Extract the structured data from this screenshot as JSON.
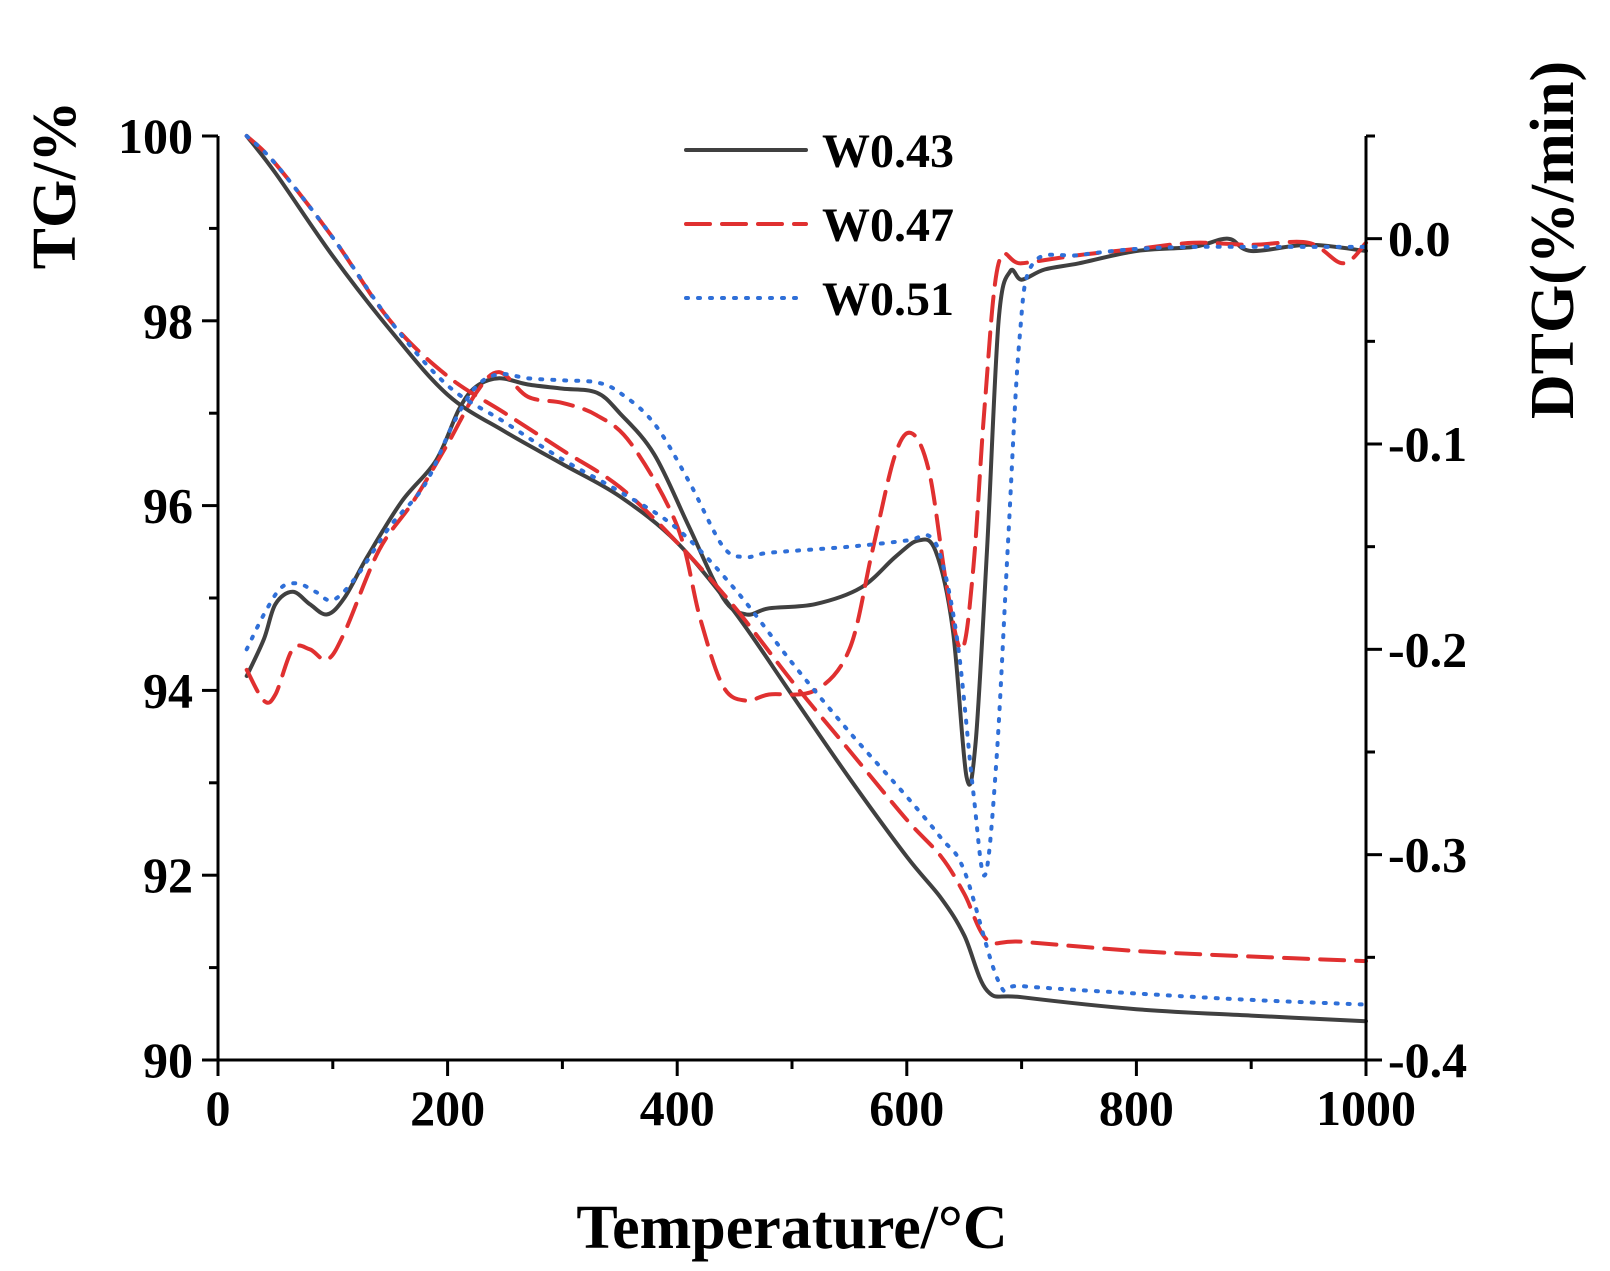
{
  "chart_data": {
    "type": "line",
    "title": "",
    "xlabel": "Temperature/°C",
    "ylabel": "TG/%",
    "y2label": "DTG(%/min)",
    "xlim": [
      0,
      1000
    ],
    "ylim": [
      90,
      100
    ],
    "y2lim": [
      -0.4,
      0.05
    ],
    "x_ticks": [
      0,
      200,
      400,
      600,
      800,
      1000
    ],
    "y_ticks": [
      90,
      92,
      94,
      96,
      98,
      100
    ],
    "y2_ticks": [
      -0.4,
      -0.3,
      -0.2,
      -0.1,
      0.0
    ],
    "x_tick_labels": [
      "0",
      "200",
      "400",
      "600",
      "800",
      "1000"
    ],
    "y_tick_labels": [
      "90",
      "92",
      "94",
      "96",
      "98",
      "100"
    ],
    "y2_tick_labels": [
      "-0.4",
      "-0.3",
      "-0.2",
      "-0.1",
      "0.0"
    ],
    "grid": false,
    "legend_position": "top-center",
    "series": [
      {
        "name": "W0.43",
        "color": "#404040",
        "style": "solid",
        "tg": [
          [
            25,
            100
          ],
          [
            50,
            99.6
          ],
          [
            100,
            98.7
          ],
          [
            150,
            97.9
          ],
          [
            200,
            97.2
          ],
          [
            250,
            96.8
          ],
          [
            300,
            96.45
          ],
          [
            350,
            96.1
          ],
          [
            400,
            95.6
          ],
          [
            450,
            94.85
          ],
          [
            500,
            93.95
          ],
          [
            550,
            93.05
          ],
          [
            600,
            92.2
          ],
          [
            630,
            91.75
          ],
          [
            650,
            91.35
          ],
          [
            670,
            90.75
          ],
          [
            700,
            90.68
          ],
          [
            800,
            90.55
          ],
          [
            900,
            90.48
          ],
          [
            1000,
            90.42
          ]
        ],
        "dtg": [
          [
            25,
            -0.213
          ],
          [
            40,
            -0.195
          ],
          [
            50,
            -0.178
          ],
          [
            65,
            -0.172
          ],
          [
            80,
            -0.178
          ],
          [
            95,
            -0.183
          ],
          [
            110,
            -0.175
          ],
          [
            130,
            -0.155
          ],
          [
            160,
            -0.128
          ],
          [
            190,
            -0.108
          ],
          [
            210,
            -0.083
          ],
          [
            225,
            -0.072
          ],
          [
            245,
            -0.068
          ],
          [
            270,
            -0.071
          ],
          [
            300,
            -0.073
          ],
          [
            330,
            -0.075
          ],
          [
            350,
            -0.085
          ],
          [
            380,
            -0.105
          ],
          [
            410,
            -0.14
          ],
          [
            440,
            -0.175
          ],
          [
            460,
            -0.183
          ],
          [
            480,
            -0.18
          ],
          [
            520,
            -0.178
          ],
          [
            560,
            -0.17
          ],
          [
            590,
            -0.155
          ],
          [
            610,
            -0.147
          ],
          [
            625,
            -0.152
          ],
          [
            640,
            -0.19
          ],
          [
            652,
            -0.262
          ],
          [
            660,
            -0.245
          ],
          [
            670,
            -0.15
          ],
          [
            680,
            -0.04
          ],
          [
            690,
            -0.016
          ],
          [
            700,
            -0.02
          ],
          [
            720,
            -0.015
          ],
          [
            750,
            -0.012
          ],
          [
            800,
            -0.006
          ],
          [
            850,
            -0.004
          ],
          [
            880,
            0.0
          ],
          [
            900,
            -0.006
          ],
          [
            950,
            -0.003
          ],
          [
            1000,
            -0.006
          ]
        ]
      },
      {
        "name": "W0.47",
        "color": "#e03030",
        "style": "dashed",
        "tg": [
          [
            25,
            100
          ],
          [
            50,
            99.7
          ],
          [
            100,
            98.9
          ],
          [
            150,
            98.0
          ],
          [
            200,
            97.4
          ],
          [
            250,
            97.0
          ],
          [
            300,
            96.6
          ],
          [
            350,
            96.2
          ],
          [
            400,
            95.6
          ],
          [
            450,
            94.9
          ],
          [
            500,
            94.1
          ],
          [
            550,
            93.35
          ],
          [
            600,
            92.6
          ],
          [
            630,
            92.2
          ],
          [
            650,
            91.8
          ],
          [
            670,
            91.3
          ],
          [
            700,
            91.28
          ],
          [
            800,
            91.18
          ],
          [
            900,
            91.12
          ],
          [
            1000,
            91.07
          ]
        ],
        "dtg": [
          [
            25,
            -0.21
          ],
          [
            40,
            -0.225
          ],
          [
            50,
            -0.222
          ],
          [
            65,
            -0.2
          ],
          [
            80,
            -0.2
          ],
          [
            95,
            -0.205
          ],
          [
            110,
            -0.192
          ],
          [
            140,
            -0.152
          ],
          [
            170,
            -0.128
          ],
          [
            200,
            -0.1
          ],
          [
            225,
            -0.075
          ],
          [
            245,
            -0.065
          ],
          [
            270,
            -0.077
          ],
          [
            300,
            -0.08
          ],
          [
            330,
            -0.086
          ],
          [
            360,
            -0.1
          ],
          [
            400,
            -0.14
          ],
          [
            420,
            -0.185
          ],
          [
            440,
            -0.218
          ],
          [
            460,
            -0.225
          ],
          [
            480,
            -0.222
          ],
          [
            520,
            -0.22
          ],
          [
            550,
            -0.2
          ],
          [
            570,
            -0.152
          ],
          [
            590,
            -0.105
          ],
          [
            605,
            -0.095
          ],
          [
            620,
            -0.115
          ],
          [
            635,
            -0.17
          ],
          [
            648,
            -0.2
          ],
          [
            658,
            -0.16
          ],
          [
            668,
            -0.08
          ],
          [
            680,
            -0.012
          ],
          [
            700,
            -0.012
          ],
          [
            750,
            -0.008
          ],
          [
            800,
            -0.005
          ],
          [
            850,
            -0.002
          ],
          [
            900,
            -0.003
          ],
          [
            950,
            -0.002
          ],
          [
            980,
            -0.012
          ],
          [
            1000,
            -0.002
          ]
        ]
      },
      {
        "name": "W0.51",
        "color": "#2f6fd8",
        "style": "dotted",
        "tg": [
          [
            25,
            100
          ],
          [
            50,
            99.7
          ],
          [
            100,
            98.9
          ],
          [
            150,
            98.0
          ],
          [
            200,
            97.3
          ],
          [
            250,
            96.9
          ],
          [
            300,
            96.5
          ],
          [
            350,
            96.15
          ],
          [
            400,
            95.75
          ],
          [
            450,
            95.1
          ],
          [
            500,
            94.3
          ],
          [
            550,
            93.55
          ],
          [
            600,
            92.85
          ],
          [
            630,
            92.4
          ],
          [
            650,
            92.05
          ],
          [
            680,
            90.85
          ],
          [
            700,
            90.8
          ],
          [
            800,
            90.72
          ],
          [
            900,
            90.65
          ],
          [
            1000,
            90.6
          ]
        ],
        "dtg": [
          [
            25,
            -0.2
          ],
          [
            40,
            -0.183
          ],
          [
            55,
            -0.17
          ],
          [
            70,
            -0.168
          ],
          [
            85,
            -0.172
          ],
          [
            100,
            -0.176
          ],
          [
            120,
            -0.165
          ],
          [
            150,
            -0.14
          ],
          [
            180,
            -0.12
          ],
          [
            205,
            -0.09
          ],
          [
            225,
            -0.072
          ],
          [
            245,
            -0.066
          ],
          [
            270,
            -0.068
          ],
          [
            300,
            -0.069
          ],
          [
            330,
            -0.07
          ],
          [
            350,
            -0.075
          ],
          [
            380,
            -0.09
          ],
          [
            410,
            -0.118
          ],
          [
            440,
            -0.15
          ],
          [
            460,
            -0.155
          ],
          [
            480,
            -0.153
          ],
          [
            550,
            -0.15
          ],
          [
            600,
            -0.147
          ],
          [
            620,
            -0.145
          ],
          [
            632,
            -0.16
          ],
          [
            645,
            -0.2
          ],
          [
            658,
            -0.27
          ],
          [
            668,
            -0.31
          ],
          [
            678,
            -0.255
          ],
          [
            688,
            -0.15
          ],
          [
            698,
            -0.05
          ],
          [
            710,
            -0.012
          ],
          [
            750,
            -0.008
          ],
          [
            800,
            -0.005
          ],
          [
            850,
            -0.004
          ],
          [
            900,
            -0.004
          ],
          [
            950,
            -0.004
          ],
          [
            1000,
            -0.004
          ]
        ]
      }
    ]
  }
}
